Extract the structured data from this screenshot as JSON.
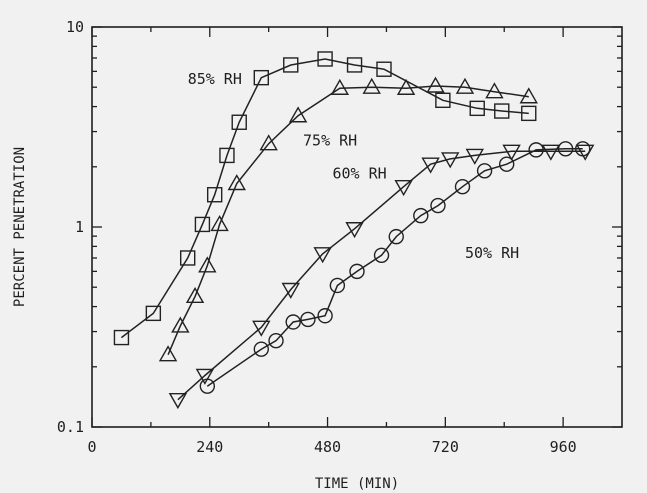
{
  "chart_data": {
    "type": "line",
    "title": "",
    "xlabel": "TIME (MIN)",
    "ylabel": "PERCENT PENETRATION",
    "xlim": [
      0,
      1080
    ],
    "ylim": [
      0.1,
      10
    ],
    "y_scale": "log",
    "grid": false,
    "legend": "none",
    "x_ticks": [
      {
        "value": 0,
        "label": "0"
      },
      {
        "value": 240,
        "label": "240"
      },
      {
        "value": 480,
        "label": "480"
      },
      {
        "value": 720,
        "label": "720"
      },
      {
        "value": 960,
        "label": "960"
      }
    ],
    "y_ticks": [
      {
        "value": 0.1,
        "label": "0.1"
      },
      {
        "value": 1,
        "label": "1"
      },
      {
        "value": 10,
        "label": "10"
      }
    ],
    "series": [
      {
        "name": "85% RH",
        "marker": "square",
        "x": [
          60,
          125,
          195,
          225,
          250,
          275,
          300,
          345,
          405,
          475,
          535,
          595,
          715,
          785,
          835,
          890
        ],
        "y": [
          0.28,
          0.37,
          0.7,
          1.03,
          1.45,
          2.28,
          3.34,
          5.58,
          6.46,
          6.92,
          6.46,
          6.15,
          4.3,
          3.92,
          3.8,
          3.7
        ]
      },
      {
        "name": "75% RH",
        "marker": "triangle-up",
        "x": [
          155,
          180,
          210,
          235,
          260,
          295,
          360,
          420,
          505,
          570,
          640,
          700,
          760,
          820,
          890
        ],
        "y": [
          0.23,
          0.32,
          0.45,
          0.64,
          1.03,
          1.65,
          2.61,
          3.6,
          4.94,
          5.0,
          4.94,
          5.07,
          5.0,
          4.75,
          4.48
        ]
      },
      {
        "name": "60% RH",
        "marker": "triangle-down",
        "x": [
          175,
          230,
          345,
          405,
          470,
          535,
          635,
          690,
          730,
          780,
          855,
          935,
          1005
        ],
        "y": [
          0.137,
          0.181,
          0.315,
          0.487,
          0.734,
          0.98,
          1.59,
          2.06,
          2.19,
          2.28,
          2.39,
          2.39,
          2.39
        ]
      },
      {
        "name": "50% RH",
        "marker": "circle",
        "x": [
          235,
          345,
          375,
          410,
          440,
          475,
          500,
          540,
          590,
          620,
          670,
          705,
          755,
          800,
          845,
          905,
          965,
          1000
        ],
        "y": [
          0.16,
          0.245,
          0.27,
          0.335,
          0.345,
          0.36,
          0.51,
          0.6,
          0.722,
          0.895,
          1.14,
          1.28,
          1.59,
          1.91,
          2.06,
          2.43,
          2.46,
          2.46
        ]
      }
    ],
    "annotations": [
      {
        "text": "85% RH",
        "series": "85% RH",
        "x": 195,
        "y": 5.2
      },
      {
        "text": "75% RH",
        "series": "75% RH",
        "x": 430,
        "y": 2.55
      },
      {
        "text": "60% RH",
        "series": "60% RH",
        "x": 490,
        "y": 1.75
      },
      {
        "text": "50% RH",
        "series": "50% RH",
        "x": 760,
        "y": 0.7
      }
    ]
  }
}
